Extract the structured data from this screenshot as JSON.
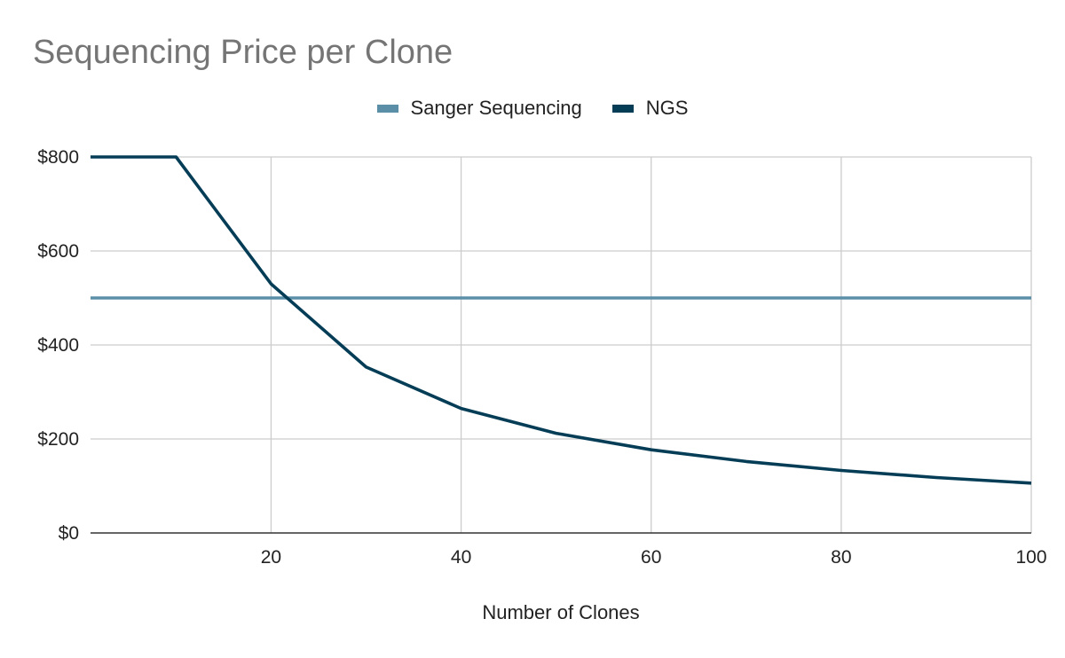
{
  "chart_data": {
    "type": "line",
    "title": "Sequencing Price per Clone",
    "xlabel": "Number of Clones",
    "ylabel": "",
    "xlim": [
      1,
      100
    ],
    "ylim": [
      0,
      800
    ],
    "x_ticks": [
      20,
      40,
      60,
      80,
      100
    ],
    "y_ticks": [
      0,
      200,
      400,
      600,
      800
    ],
    "y_tick_labels": [
      "$0",
      "$200",
      "$400",
      "$600",
      "$800"
    ],
    "grid": true,
    "legend_position": "top-center",
    "series": [
      {
        "name": "Sanger Sequencing",
        "color": "#5b8fa8",
        "x": [
          1,
          100
        ],
        "y": [
          500,
          500
        ]
      },
      {
        "name": "NGS",
        "color": "#053d57",
        "x": [
          1,
          10,
          20,
          30,
          40,
          50,
          60,
          70,
          80,
          90,
          100
        ],
        "y": [
          800,
          800,
          530,
          353,
          265,
          212,
          177,
          152,
          133,
          118,
          106
        ]
      }
    ]
  }
}
